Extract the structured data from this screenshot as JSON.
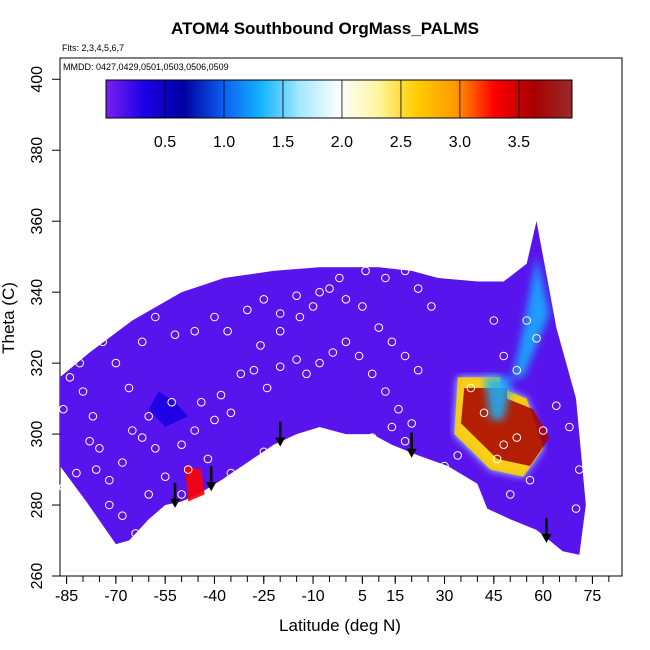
{
  "chart_data": {
    "type": "heatmap",
    "title": "ATOM4 Southbound OrgMass_PALMS",
    "flights_note": "Flts: 2,3,4,5,6,7",
    "dates_note": "MMDD: 0427,0429,0501,0503,0506,0509",
    "xlabel": "Latitude (deg N)",
    "ylabel": "Theta (C)",
    "xlim": [
      -87,
      84
    ],
    "ylim": [
      260,
      406
    ],
    "x_ticks": [
      -85,
      -70,
      -55,
      -40,
      -25,
      -10,
      5,
      15,
      30,
      45,
      60,
      75
    ],
    "y_ticks": [
      260,
      280,
      300,
      320,
      340,
      360,
      380,
      400
    ],
    "colorbar": {
      "range": [
        0,
        3.95
      ],
      "ticks": [
        0.5,
        1.0,
        1.5,
        2.0,
        2.5,
        3.0,
        3.5
      ],
      "colors": [
        "#7a1ff0",
        "#1a00e6",
        "#0000a0",
        "#0a5cf0",
        "#14b4ff",
        "#a6e8ff",
        "#fbffff",
        "#fff6a0",
        "#ffcd00",
        "#ff9900",
        "#ff0000",
        "#a80000",
        "#9a2a2a"
      ]
    },
    "field_outline": [
      [
        -87,
        291
      ],
      [
        -87,
        316
      ],
      [
        -78,
        323
      ],
      [
        -65,
        332
      ],
      [
        -50,
        340
      ],
      [
        -37,
        344
      ],
      [
        -22,
        346
      ],
      [
        -8,
        347
      ],
      [
        10,
        347
      ],
      [
        20,
        346
      ],
      [
        28,
        344
      ],
      [
        40,
        343
      ],
      [
        48,
        343
      ],
      [
        55,
        348
      ],
      [
        58,
        360
      ],
      [
        64,
        330
      ],
      [
        70,
        310
      ],
      [
        73,
        280
      ],
      [
        71,
        266
      ],
      [
        66,
        267
      ],
      [
        58,
        273
      ],
      [
        50,
        276
      ],
      [
        43,
        279
      ],
      [
        40,
        286
      ],
      [
        31,
        291
      ],
      [
        22,
        294
      ],
      [
        14,
        297
      ],
      [
        8,
        300
      ],
      [
        0,
        300
      ],
      [
        -8,
        302
      ],
      [
        -15,
        300
      ],
      [
        -22,
        297
      ],
      [
        -30,
        292
      ],
      [
        -38,
        287
      ],
      [
        -45,
        283
      ],
      [
        -50,
        281
      ],
      [
        -55,
        280
      ],
      [
        -60,
        276
      ],
      [
        -66,
        270
      ],
      [
        -70,
        269
      ],
      [
        -79,
        281
      ],
      [
        -87,
        291
      ]
    ],
    "features": [
      {
        "name": "high_band",
        "value": 3.9,
        "polygon": [
          [
            34,
            316
          ],
          [
            47,
            316
          ],
          [
            47,
            313
          ],
          [
            55,
            310
          ],
          [
            60,
            296
          ],
          [
            54,
            288
          ],
          [
            44,
            290
          ],
          [
            33,
            300
          ]
        ]
      },
      {
        "name": "mid_plume",
        "value": 1.4,
        "polygon": [
          [
            42,
            316
          ],
          [
            54,
            316
          ],
          [
            62,
            334
          ],
          [
            58,
            350
          ],
          [
            54,
            330
          ],
          [
            50,
            313
          ],
          [
            48,
            304
          ],
          [
            44,
            304
          ]
        ]
      },
      {
        "name": "low_band",
        "value": 3.2,
        "polygon": [
          [
            -49,
            291
          ],
          [
            -44,
            290
          ],
          [
            -43,
            283
          ],
          [
            -48,
            281
          ]
        ]
      },
      {
        "name": "dark_spot",
        "value": 0.2,
        "polygon": [
          [
            -57,
            312
          ],
          [
            -52,
            309
          ],
          [
            -48,
            305
          ],
          [
            -55,
            302
          ],
          [
            -60,
            307
          ]
        ]
      }
    ],
    "sample_points": [
      [
        -84,
        316
      ],
      [
        -80,
        312
      ],
      [
        -77,
        305
      ],
      [
        -75,
        296
      ],
      [
        -72,
        287
      ],
      [
        -68,
        292
      ],
      [
        -65,
        301
      ],
      [
        -62,
        299
      ],
      [
        -60,
        305
      ],
      [
        -58,
        296
      ],
      [
        -55,
        288
      ],
      [
        -53,
        309
      ],
      [
        -50,
        297
      ],
      [
        -48,
        290
      ],
      [
        -46,
        301
      ],
      [
        -44,
        309
      ],
      [
        -42,
        293
      ],
      [
        -40,
        304
      ],
      [
        -38,
        311
      ],
      [
        -35,
        306
      ],
      [
        -32,
        317
      ],
      [
        -28,
        318
      ],
      [
        -24,
        313
      ],
      [
        -20,
        319
      ],
      [
        -15,
        321
      ],
      [
        -12,
        317
      ],
      [
        -8,
        320
      ],
      [
        -4,
        323
      ],
      [
        0,
        326
      ],
      [
        4,
        322
      ],
      [
        8,
        317
      ],
      [
        12,
        312
      ],
      [
        16,
        307
      ],
      [
        20,
        303
      ],
      [
        -86,
        307
      ],
      [
        -81,
        320
      ],
      [
        -74,
        326
      ],
      [
        -70,
        320
      ],
      [
        -66,
        313
      ],
      [
        -62,
        326
      ],
      [
        -58,
        333
      ],
      [
        -52,
        328
      ],
      [
        -46,
        329
      ],
      [
        -40,
        333
      ],
      [
        -36,
        329
      ],
      [
        -30,
        335
      ],
      [
        -25,
        338
      ],
      [
        -20,
        334
      ],
      [
        -15,
        339
      ],
      [
        -10,
        336
      ],
      [
        -5,
        341
      ],
      [
        0,
        338
      ],
      [
        5,
        336
      ],
      [
        10,
        330
      ],
      [
        14,
        326
      ],
      [
        18,
        322
      ],
      [
        22,
        318
      ],
      [
        -78,
        298
      ],
      [
        -82,
        289
      ],
      [
        -86,
        285
      ],
      [
        -72,
        280
      ],
      [
        -60,
        283
      ],
      [
        -50,
        283
      ],
      [
        -40,
        285
      ],
      [
        -35,
        289
      ],
      [
        -30,
        288
      ],
      [
        -25,
        295
      ],
      [
        8,
        299
      ],
      [
        14,
        302
      ],
      [
        18,
        298
      ],
      [
        30,
        291
      ],
      [
        34,
        294
      ],
      [
        38,
        313
      ],
      [
        42,
        306
      ],
      [
        46,
        293
      ],
      [
        48,
        297
      ],
      [
        50,
        283
      ],
      [
        52,
        299
      ],
      [
        56,
        287
      ],
      [
        60,
        301
      ],
      [
        64,
        308
      ],
      [
        68,
        302
      ],
      [
        70,
        279
      ],
      [
        71,
        290
      ],
      [
        55,
        332
      ],
      [
        58,
        327
      ],
      [
        52,
        318
      ],
      [
        48,
        322
      ],
      [
        45,
        332
      ],
      [
        60,
        357
      ],
      [
        26,
        336
      ],
      [
        22,
        341
      ],
      [
        18,
        346
      ],
      [
        12,
        344
      ],
      [
        6,
        346
      ],
      [
        -2,
        344
      ],
      [
        -8,
        340
      ],
      [
        -14,
        333
      ],
      [
        -20,
        329
      ],
      [
        -26,
        325
      ],
      [
        -64,
        272
      ],
      [
        -68,
        277
      ],
      [
        -76,
        290
      ]
    ],
    "arrows_x": [
      -52,
      -41,
      -20,
      20,
      61
    ]
  }
}
